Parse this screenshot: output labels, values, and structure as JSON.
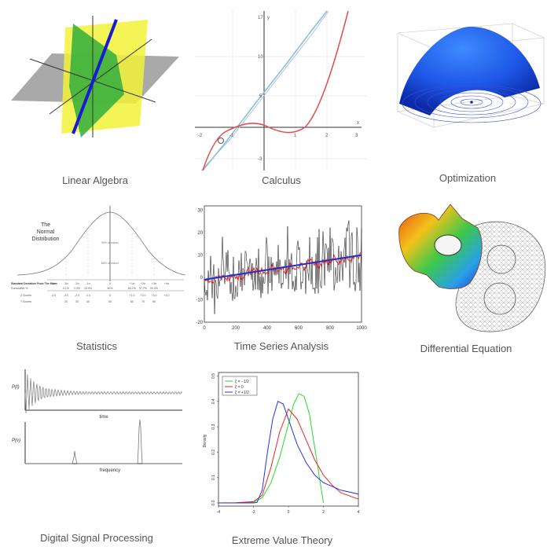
{
  "captions": {
    "linear_algebra": "Linear Algebra",
    "calculus": "Calculus",
    "optimization": "Optimization",
    "statistics": "Statistics",
    "time_series": "Time Series Analysis",
    "differential_equation": "Differential Equation",
    "dsp": "Digital Signal Processing",
    "evt": "Extreme Value Theory"
  },
  "calculus": {
    "x_ticks": [
      "-2",
      "-1",
      "1",
      "2",
      "3"
    ],
    "y_ticks": [
      "17",
      "10",
      "5",
      "-3"
    ],
    "x_label": "x",
    "y_label": "y"
  },
  "statistics": {
    "title_1": "The",
    "title_2": "Normal",
    "title_3": "Distribution",
    "pct_95": "95% of values",
    "pct_68": "68% of values",
    "row_labels": [
      "Standard Deviation From The Mean",
      "Cumulative %",
      "Z Scores",
      "T Scores"
    ],
    "sd_ticks": [
      "-4σ",
      "-3σ",
      "-2σ",
      "-1σ",
      "0",
      "+1σ",
      "+2σ",
      "+3σ",
      "+4σ"
    ],
    "cum_pct": [
      "0.1%",
      "2.3%",
      "15.9%",
      "50%",
      "84.1%",
      "97.7%",
      "99.9%"
    ],
    "z_scores": [
      "-4.0",
      "-3.0",
      "-2.0",
      "-1.0",
      "0",
      "+1.0",
      "+2.0",
      "+3.0",
      "+4.0"
    ],
    "t_scores": [
      "20",
      "30",
      "40",
      "50",
      "60",
      "70",
      "80"
    ]
  },
  "time_series": {
    "y_ticks": [
      "30",
      "20",
      "10",
      "0",
      "-10",
      "-20"
    ],
    "x_ticks": [
      "0",
      "200",
      "400",
      "600",
      "800",
      "1000"
    ],
    "colors": {
      "raw": "#000000",
      "smooth": "#e8251f",
      "trend": "#1b2fd6"
    }
  },
  "dsp": {
    "top_ylabel": "P(t)",
    "top_xlabel": "time",
    "bottom_ylabel": "P(ν)",
    "bottom_xlabel": "frequency"
  },
  "chart_data": {
    "type": "line",
    "title": "",
    "xlabel": "",
    "ylabel": "Density",
    "xlim": [
      -4,
      4
    ],
    "ylim": [
      0,
      0.5
    ],
    "x_ticks": [
      "-4",
      "-2",
      "0",
      "2",
      "4"
    ],
    "y_ticks": [
      "0.0",
      "0.1",
      "0.2",
      "0.3",
      "0.4",
      "0.5"
    ],
    "legend_position": "top-left",
    "series": [
      {
        "name": "ξ = −1/2",
        "color": "#22dd22",
        "x": [
          -4,
          -3,
          -2,
          -1.5,
          -1,
          -0.5,
          0,
          0.3,
          0.6,
          0.9,
          1.2,
          1.5,
          1.8,
          2.0
        ],
        "values": [
          0,
          0,
          0.002,
          0.02,
          0.08,
          0.18,
          0.31,
          0.39,
          0.43,
          0.42,
          0.35,
          0.22,
          0.09,
          0.0
        ]
      },
      {
        "name": "ξ = 0",
        "color": "#ee2222",
        "x": [
          -4,
          -3,
          -2,
          -1.5,
          -1,
          -0.5,
          0,
          0.5,
          1,
          1.5,
          2,
          2.5,
          3,
          4
        ],
        "values": [
          0,
          0.001,
          0.005,
          0.03,
          0.14,
          0.28,
          0.37,
          0.33,
          0.25,
          0.17,
          0.11,
          0.07,
          0.04,
          0.015
        ]
      },
      {
        "name": "ξ = +1/2",
        "color": "#2233ee",
        "x": [
          -4,
          -2,
          -1.8,
          -1.5,
          -1.2,
          -0.9,
          -0.6,
          -0.3,
          0,
          0.5,
          1,
          1.5,
          2,
          3,
          4
        ],
        "values": [
          0,
          0,
          0.002,
          0.05,
          0.2,
          0.33,
          0.4,
          0.39,
          0.33,
          0.23,
          0.16,
          0.11,
          0.08,
          0.05,
          0.035
        ]
      }
    ]
  }
}
